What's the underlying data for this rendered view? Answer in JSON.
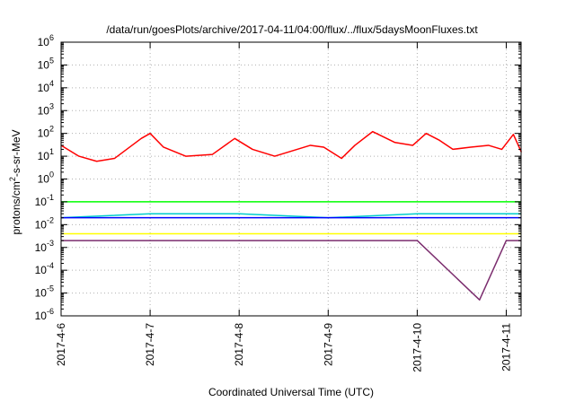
{
  "chart_data": {
    "type": "line",
    "title": "/data/run/goesPlots/archive/2017-04-11/04:00/flux/../flux/5daysMoonFluxes.txt",
    "xlabel": "Coordinated Universal Time (UTC)",
    "ylabel": "protons/cm2-s-sr-MeV",
    "ylabel_parts": {
      "base": "protons/cm",
      "sup": "2",
      "rest": "-s-sr-MeV"
    },
    "yscale": "log",
    "ylim_exp": [
      -6,
      6
    ],
    "y_tick_exponents": [
      -6,
      -5,
      -4,
      -3,
      -2,
      -1,
      0,
      1,
      2,
      3,
      4,
      5,
      6
    ],
    "y_tick_base": "10",
    "xlim": [
      "2017-04-06",
      "2017-04-11T04:00"
    ],
    "x_ticks": [
      "2017-4-6",
      "2017-4-7",
      "2017-4-8",
      "2017-4-9",
      "2017-4-10",
      "2017-4-11"
    ],
    "grid": true,
    "legend": "none",
    "series": [
      {
        "color": "#ff0000",
        "days": [
          0,
          0.2,
          0.4,
          0.6,
          0.9,
          1.0,
          1.15,
          1.4,
          1.7,
          1.95,
          2.15,
          2.4,
          2.8,
          2.95,
          3.15,
          3.3,
          3.5,
          3.75,
          3.95,
          4.1,
          4.25,
          4.4,
          4.6,
          4.8,
          4.95,
          5.08,
          5.17
        ],
        "values": [
          30,
          10,
          6,
          8,
          60,
          100,
          25,
          10,
          12,
          60,
          20,
          10,
          30,
          25,
          8,
          30,
          120,
          40,
          30,
          100,
          50,
          20,
          25,
          30,
          20,
          90,
          15
        ]
      },
      {
        "color": "#00ff00",
        "days": [
          0,
          1,
          2,
          3,
          4,
          5,
          5.17
        ],
        "values": [
          0.1,
          0.1,
          0.1,
          0.1,
          0.1,
          0.1,
          0.1
        ]
      },
      {
        "color": "#00cccc",
        "days": [
          0,
          1,
          2,
          3,
          4,
          5,
          5.17
        ],
        "values": [
          0.02,
          0.03,
          0.03,
          0.02,
          0.03,
          0.03,
          0.03
        ]
      },
      {
        "color": "#0000ff",
        "days": [
          0,
          1,
          2,
          3,
          4,
          5,
          5.17
        ],
        "values": [
          0.02,
          0.02,
          0.02,
          0.02,
          0.02,
          0.02,
          0.02
        ]
      },
      {
        "color": "#ffff00",
        "days": [
          0,
          1,
          2,
          3,
          4,
          5,
          5.17
        ],
        "values": [
          0.004,
          0.004,
          0.004,
          0.004,
          0.004,
          0.004,
          0.004
        ]
      },
      {
        "color": "#7b2d6e",
        "days": [
          0,
          1,
          2,
          3,
          4,
          4.7,
          5,
          5.17
        ],
        "values": [
          0.002,
          0.002,
          0.002,
          0.002,
          0.002,
          5e-06,
          0.002,
          0.002
        ]
      }
    ]
  }
}
